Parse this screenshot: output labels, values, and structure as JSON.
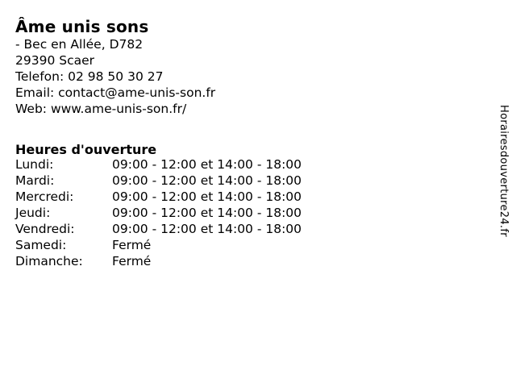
{
  "business": {
    "title": "Âme unis sons",
    "address_line1": "- Bec en Allée, D782",
    "address_line2": "29390 Scaer",
    "phone_line": "Telefon: 02 98 50 30 27",
    "email_line": "Email: contact@ame-unis-son.fr",
    "web_line": "Web: www.ame-unis-son.fr/"
  },
  "hours": {
    "heading": "Heures d'ouverture",
    "rows": [
      {
        "day": "Lundi:",
        "time": "09:00 - 12:00 et 14:00 - 18:00"
      },
      {
        "day": "Mardi:",
        "time": "09:00 - 12:00 et 14:00 - 18:00"
      },
      {
        "day": "Mercredi:",
        "time": "09:00 - 12:00 et 14:00 - 18:00"
      },
      {
        "day": "Jeudi:",
        "time": "09:00 - 12:00 et 14:00 - 18:00"
      },
      {
        "day": "Vendredi:",
        "time": "09:00 - 12:00 et 14:00 - 18:00"
      },
      {
        "day": "Samedi:",
        "time": "Fermé"
      },
      {
        "day": "Dimanche:",
        "time": "Fermé"
      }
    ]
  },
  "watermark": "Horairesdouverture24.fr",
  "colors": {
    "background": "#ffffff",
    "text": "#000000"
  }
}
